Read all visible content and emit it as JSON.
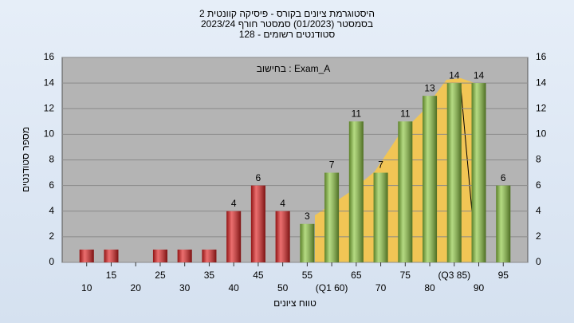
{
  "chart_data": {
    "type": "bar",
    "title_lines": [
      "היסטוגרמת ציונים בקורס - פיסיקה קוונטית 2",
      "בסמסטר (01/2023) סמסטר חורף 2023/24",
      "סטודנטים רשומים - 128"
    ],
    "annotation": "בחישוב : Exam_A",
    "y_label": "מספר סטודנטים",
    "x_label": "טווח ציונים",
    "categories": [
      "10",
      "15",
      "20",
      "25",
      "30",
      "35",
      "40",
      "45",
      "50",
      "55",
      "(Q1 60)",
      "65",
      "70",
      "75",
      "80",
      "(Q3 85)",
      "90",
      "95"
    ],
    "values": [
      1,
      1,
      0,
      1,
      1,
      1,
      4,
      6,
      4,
      3,
      7,
      11,
      7,
      11,
      13,
      14,
      14,
      6
    ],
    "value_labels": [
      null,
      null,
      null,
      null,
      null,
      null,
      "4",
      "6",
      "4",
      "3",
      "7",
      "11",
      "7",
      "11",
      "13",
      "14",
      "14",
      "6"
    ],
    "colors": [
      "#e02020",
      "#e02020",
      "#e02020",
      "#e02020",
      "#e02020",
      "#e02020",
      "#e02020",
      "#e02020",
      "#e02020",
      "#8cc63f",
      "#8cc63f",
      "#8cc63f",
      "#8cc63f",
      "#8cc63f",
      "#8cc63f",
      "#8cc63f",
      "#8cc63f",
      "#8cc63f"
    ],
    "ylim": [
      0,
      16
    ],
    "yticks": [
      0,
      2,
      4,
      6,
      8,
      10,
      12,
      14,
      16
    ],
    "grid": true
  }
}
